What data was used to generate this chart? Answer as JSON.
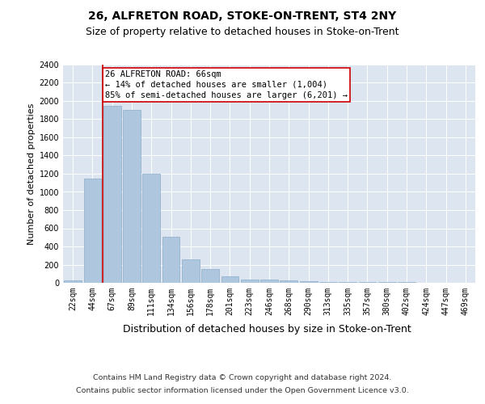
{
  "title": "26, ALFRETON ROAD, STOKE-ON-TRENT, ST4 2NY",
  "subtitle": "Size of property relative to detached houses in Stoke-on-Trent",
  "xlabel": "Distribution of detached houses by size in Stoke-on-Trent",
  "ylabel": "Number of detached properties",
  "categories": [
    "22sqm",
    "44sqm",
    "67sqm",
    "89sqm",
    "111sqm",
    "134sqm",
    "156sqm",
    "178sqm",
    "201sqm",
    "223sqm",
    "246sqm",
    "268sqm",
    "290sqm",
    "313sqm",
    "335sqm",
    "357sqm",
    "380sqm",
    "402sqm",
    "424sqm",
    "447sqm",
    "469sqm"
  ],
  "values": [
    30,
    1150,
    1950,
    1900,
    1200,
    510,
    260,
    155,
    70,
    40,
    40,
    30,
    15,
    10,
    7,
    5,
    5,
    5,
    2,
    2,
    2
  ],
  "bar_color": "#aec6de",
  "bar_edge_color": "#8aafc8",
  "vline_color": "#cc0000",
  "annotation_text": "26 ALFRETON ROAD: 66sqm\n← 14% of detached houses are smaller (1,004)\n85% of semi-detached houses are larger (6,201) →",
  "annotation_box_color": "#ffffff",
  "annotation_box_edgecolor": "#cc0000",
  "ylim": [
    0,
    2400
  ],
  "yticks": [
    0,
    200,
    400,
    600,
    800,
    1000,
    1200,
    1400,
    1600,
    1800,
    2000,
    2200,
    2400
  ],
  "plot_bg_color": "#dde6f0",
  "footer_line1": "Contains HM Land Registry data © Crown copyright and database right 2024.",
  "footer_line2": "Contains public sector information licensed under the Open Government Licence v3.0.",
  "title_fontsize": 10,
  "subtitle_fontsize": 9,
  "xlabel_fontsize": 9,
  "ylabel_fontsize": 8,
  "annotation_fontsize": 7.5,
  "tick_fontsize": 7
}
